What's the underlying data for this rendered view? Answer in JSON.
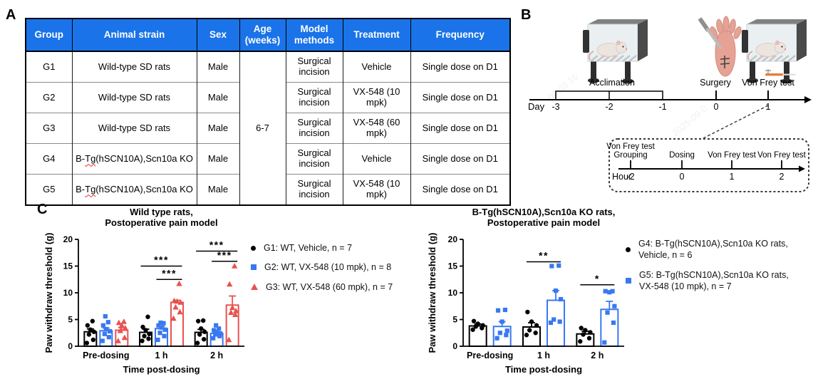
{
  "panels": {
    "a": "A",
    "b": "B",
    "c": "C"
  },
  "table": {
    "colors": {
      "header_bg": "#1a73e8",
      "header_text": "#ffffff"
    },
    "headers": [
      "Group",
      "Animal strain",
      "Sex",
      "Age\n(weeks)",
      "Model\nmethods",
      "Treatment",
      "Frequency"
    ],
    "age_merged": "6-7",
    "rows": [
      {
        "group": "G1",
        "strain": "Wild-type SD rats",
        "sex": "Male",
        "model": "Surgical incision",
        "treatment": "Vehicle",
        "frequency": "Single dose on D1"
      },
      {
        "group": "G2",
        "strain": "Wild-type SD rats",
        "sex": "Male",
        "model": "Surgical incision",
        "treatment": "VX-548 (10 mpk)",
        "frequency": "Single dose on D1"
      },
      {
        "group": "G3",
        "strain": "Wild-type SD rats",
        "sex": "Male",
        "model": "Surgical incision",
        "treatment": "VX-548 (60 mpk)",
        "frequency": "Single dose on D1"
      },
      {
        "group": "G4",
        "strain": "B-Tg(hSCN10A),Scn10a KO",
        "misspell": "Tg",
        "sex": "Male",
        "model": "Surgical incision",
        "treatment": "Vehicle",
        "frequency": "Single dose on D1"
      },
      {
        "group": "G5",
        "strain": "B-Tg(hSCN10A),Scn10a KO",
        "misspell": "Tg",
        "sex": "Male",
        "model": "Surgical incision",
        "treatment": "VX-548 (10 mpk)",
        "frequency": "Single dose on D1"
      }
    ]
  },
  "timeline": {
    "day": {
      "axis_label": "Day",
      "ticks": [
        "-3",
        "-2",
        "-1",
        "0",
        "1"
      ],
      "acclimation_label": "Acclimation",
      "surgery_label": "Surgery",
      "vonfrey_label": "Von Frey test"
    },
    "hour": {
      "axis_label": "Hour",
      "ticks": [
        "-2",
        "0",
        "1",
        "2"
      ],
      "events": [
        "Von Frey test\nGrouping",
        "Dosing",
        "Von Frey test",
        "Von Frey test"
      ]
    }
  },
  "watermarks": [
    "09-03 16",
    "bj2",
    "2025-09-0"
  ],
  "chart_data": [
    {
      "type": "bar",
      "title": "Wild type rats,\nPostoperative pain model",
      "xlabel": "Time post-dosing",
      "ylabel": "Paw withdraw threshold (g)",
      "ylim": [
        0,
        20
      ],
      "yticks": [
        0,
        5,
        10,
        15,
        20
      ],
      "grid": false,
      "legend_position": "right",
      "categories": [
        "Pre-dosing",
        "1 h",
        "2 h"
      ],
      "series": [
        {
          "name": "G1: WT, Vehicle, n = 7",
          "color": "#000000",
          "marker": "circle",
          "means": [
            2.7,
            2.6,
            2.6
          ],
          "sem": [
            0.55,
            0.6,
            0.55
          ],
          "points": [
            [
              0.6,
              1.2,
              2.2,
              2.7,
              3.1,
              3.9,
              4.7
            ],
            [
              1.0,
              1.4,
              1.9,
              2.3,
              3.0,
              3.6,
              5.5
            ],
            [
              0.6,
              1.3,
              2.2,
              2.7,
              3.3,
              4.7,
              4.8
            ]
          ]
        },
        {
          "name": "G2: WT, VX-548 (10 mpk), n = 8",
          "color": "#3878f0",
          "marker": "square",
          "means": [
            2.9,
            3.3,
            2.4
          ],
          "sem": [
            0.5,
            0.4,
            0.3
          ],
          "points": [
            [
              1.0,
              1.7,
              2.3,
              2.8,
              3.2,
              3.9,
              4.5,
              5.6
            ],
            [
              1.2,
              1.9,
              2.5,
              3.1,
              3.5,
              3.9,
              4.3,
              4.4
            ],
            [
              1.5,
              1.9,
              2.2,
              2.4,
              2.7,
              3.0,
              3.3,
              3.9
            ]
          ]
        },
        {
          "name": "G3: WT, VX-548 (60 mpk), n = 7",
          "color": "#e8524e",
          "marker": "triangle",
          "means": [
            3.0,
            8.2,
            7.7
          ],
          "sem": [
            0.5,
            0.4,
            1.7
          ],
          "points": [
            [
              1.0,
              1.6,
              2.9,
              3.4,
              3.9,
              4.4,
              4.6
            ],
            [
              5.2,
              6.4,
              7.3,
              8.2,
              8.4,
              8.5,
              11.7
            ],
            [
              1.2,
              5.9,
              6.3,
              6.6,
              7.2,
              11.6,
              15.0
            ]
          ]
        }
      ],
      "significance": [
        {
          "category": "1 h",
          "from": 0,
          "to": 2,
          "y": 15.0,
          "label": "***"
        },
        {
          "category": "1 h",
          "from": 1,
          "to": 2,
          "y": 12.5,
          "label": "***"
        },
        {
          "category": "2 h",
          "from": 0,
          "to": 2,
          "y": 17.8,
          "label": "***"
        },
        {
          "category": "2 h",
          "from": 1,
          "to": 2,
          "y": 15.9,
          "label": "***"
        }
      ]
    },
    {
      "type": "bar",
      "title": "B-Tg(hSCN10A),Scn10a KO rats,\nPostoperative pain model",
      "xlabel": "Time post-dosing",
      "ylabel": "Paw withdraw threshold (g)",
      "ylim": [
        0,
        20
      ],
      "yticks": [
        0,
        5,
        10,
        15,
        20
      ],
      "grid": false,
      "legend_position": "right",
      "categories": [
        "Pre-dosing",
        "1 h",
        "2 h"
      ],
      "series": [
        {
          "name": "G4: B-Tg(hSCN10A),Scn10a KO rats,\nVehicle, n = 6",
          "color": "#000000",
          "marker": "circle",
          "means": [
            3.8,
            3.6,
            2.3
          ],
          "sem": [
            0.35,
            0.8,
            0.5
          ],
          "points": [
            [
              3.1,
              3.4,
              3.7,
              3.9,
              4.2,
              4.7
            ],
            [
              2.1,
              2.5,
              3.0,
              3.9,
              4.6,
              6.4
            ],
            [
              0.9,
              1.5,
              2.2,
              2.6,
              3.0,
              3.4
            ]
          ]
        },
        {
          "name": "G5: B-Tg(hSCN10A),Scn10a KO rats,\nVX-548 (10 mpk), n = 7",
          "color": "#3878f0",
          "marker": "square",
          "means": [
            3.7,
            8.6,
            6.9
          ],
          "sem": [
            0.9,
            1.8,
            1.5
          ],
          "points": [
            [
              1.5,
              2.1,
              2.5,
              2.9,
              4.6,
              6.7,
              6.8
            ],
            [
              4.4,
              4.6,
              5.0,
              8.8,
              10.4,
              15.0,
              15.1
            ],
            [
              0.7,
              4.4,
              6.3,
              7.5,
              10.1,
              10.3,
              10.3
            ]
          ]
        }
      ],
      "significance": [
        {
          "category": "1 h",
          "from": 0,
          "to": 1,
          "y": 15.8,
          "label": "**"
        },
        {
          "category": "2 h",
          "from": 0,
          "to": 1,
          "y": 11.5,
          "label": "*"
        }
      ]
    }
  ]
}
